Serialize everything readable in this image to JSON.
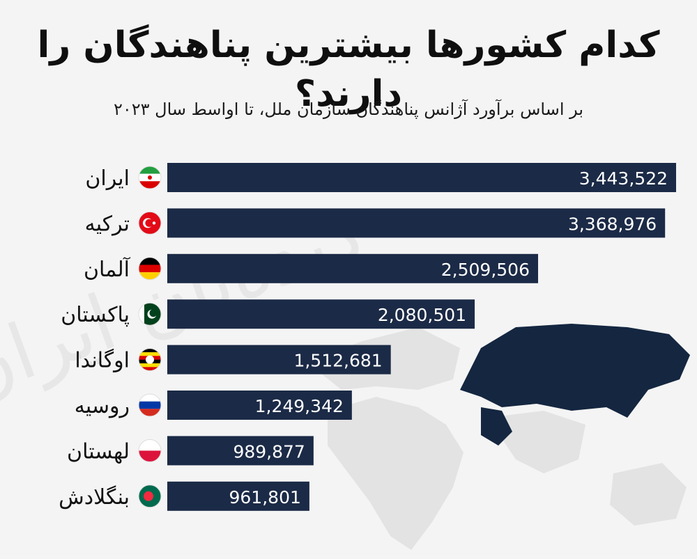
{
  "title": "کدام کشورها بیشترین پناهندگان را دارند؟",
  "subtitle": "بر اساس برآورد آژانس پناهندگان سازمان ملل، تا اواسط سال ۲۰۲۳",
  "watermark": "دیده‌بان ایران",
  "colors": {
    "bar": "#1b2a46",
    "background": "#f4f4f4",
    "map_land": "#e3e3e3",
    "map_highlight": "#142640",
    "value_text": "#ffffff"
  },
  "chart_data": {
    "type": "bar",
    "orientation": "horizontal",
    "categories": [
      "ایران",
      "ترکیه",
      "آلمان",
      "پاکستان",
      "اوگاندا",
      "روسیه",
      "لهستان",
      "بنگلادش"
    ],
    "values": [
      3443522,
      3368976,
      2509506,
      2080501,
      1512681,
      1249342,
      989877,
      961801
    ],
    "value_labels": [
      "3,443,522",
      "3,368,976",
      "2,509,506",
      "2,080,501",
      "1,512,681",
      "1,249,342",
      "989,877",
      "961,801"
    ],
    "flags": [
      "iran-flag-icon",
      "turkey-flag-icon",
      "germany-flag-icon",
      "pakistan-flag-icon",
      "uganda-flag-icon",
      "russia-flag-icon",
      "poland-flag-icon",
      "bangladesh-flag-icon"
    ],
    "title": "کدام کشورها بیشترین پناهندگان را دارند؟",
    "xlabel": "",
    "ylabel": "",
    "grid": false,
    "legend": "none"
  }
}
